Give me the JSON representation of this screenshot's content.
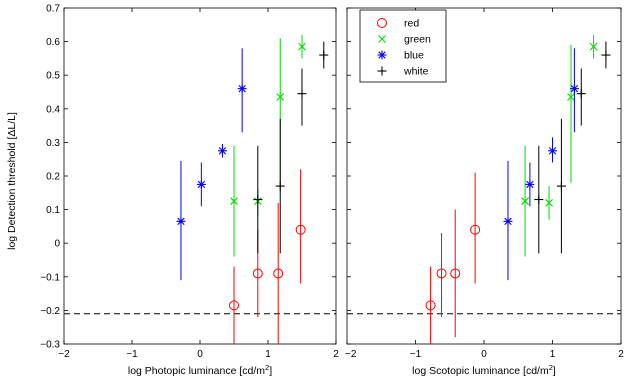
{
  "chart_data": [
    {
      "type": "scatter",
      "panel": "left",
      "xlabel": "log Photopic luminance [cd/m",
      "xlabel_sup": "2",
      "xlabel_suffix": "]",
      "ylabel": "log Detection threshold [ΔL/L]",
      "xlim": [
        -2,
        2
      ],
      "ylim": [
        -0.3,
        0.7
      ],
      "xticks": [
        "−2",
        "−1",
        "0",
        "1",
        "2"
      ],
      "yticks": [
        "−0.3",
        "−0.2",
        "−0.1",
        "0",
        "0.1",
        "0.2",
        "0.3",
        "0.4",
        "0.5",
        "0.6",
        "0.7"
      ],
      "reference_line_y": -0.21,
      "series": [
        {
          "name": "red",
          "marker": "circle",
          "color": "#ff0000",
          "points": [
            {
              "x": 0.5,
              "y": -0.185,
              "lo": -0.3,
              "hi": -0.07
            },
            {
              "x": 0.85,
              "y": -0.09,
              "lo": -0.22,
              "hi": 0.04
            },
            {
              "x": 1.15,
              "y": -0.09,
              "lo": -0.3,
              "hi": 0.12
            },
            {
              "x": 1.48,
              "y": 0.04,
              "lo": -0.12,
              "hi": 0.22
            }
          ]
        },
        {
          "name": "green",
          "marker": "x",
          "color": "#00dd00",
          "points": [
            {
              "x": 0.5,
              "y": 0.125,
              "lo": -0.04,
              "hi": 0.29
            },
            {
              "x": 0.85,
              "y": 0.125,
              "lo": 0.08,
              "hi": 0.16
            },
            {
              "x": 1.18,
              "y": 0.435,
              "lo": 0.18,
              "hi": 0.61
            },
            {
              "x": 1.5,
              "y": 0.585,
              "lo": 0.55,
              "hi": 0.62
            }
          ]
        },
        {
          "name": "blue",
          "marker": "star",
          "color": "#0000ff",
          "points": [
            {
              "x": -0.28,
              "y": 0.065,
              "lo": -0.11,
              "hi": 0.245
            },
            {
              "x": 0.02,
              "y": 0.175,
              "lo": 0.11,
              "hi": 0.24
            },
            {
              "x": 0.33,
              "y": 0.275,
              "lo": 0.255,
              "hi": 0.295
            },
            {
              "x": 0.62,
              "y": 0.46,
              "lo": 0.33,
              "hi": 0.58
            }
          ]
        },
        {
          "name": "white",
          "marker": "plus",
          "color": "#000000",
          "points": [
            {
              "x": 0.85,
              "y": 0.13,
              "lo": -0.03,
              "hi": 0.29
            },
            {
              "x": 1.18,
              "y": 0.17,
              "lo": -0.03,
              "hi": 0.37
            },
            {
              "x": 1.5,
              "y": 0.445,
              "lo": 0.35,
              "hi": 0.52
            },
            {
              "x": 1.82,
              "y": 0.56,
              "lo": 0.52,
              "hi": 0.6
            }
          ]
        }
      ]
    },
    {
      "type": "scatter",
      "panel": "right",
      "xlabel": "log Scotopic luminance [cd/m",
      "xlabel_sup": "2",
      "xlabel_suffix": "]",
      "ylabel": "",
      "xlim": [
        -2,
        2
      ],
      "ylim": [
        -0.3,
        0.7
      ],
      "xticks": [
        "−2",
        "−1",
        "0",
        "1",
        "2"
      ],
      "yticks": [],
      "reference_line_y": -0.21,
      "legend": {
        "position": "top-left",
        "entries": [
          "red",
          "green",
          "blue",
          "white"
        ]
      },
      "series": [
        {
          "name": "red",
          "marker": "circle",
          "color": "#ff0000",
          "points": [
            {
              "x": -0.78,
              "y": -0.185,
              "lo": -0.3,
              "hi": -0.07
            },
            {
              "x": -0.62,
              "y": -0.09,
              "lo": -0.22,
              "hi": 0.03
            },
            {
              "x": -0.42,
              "y": -0.09,
              "lo": -0.28,
              "hi": 0.1
            },
            {
              "x": -0.13,
              "y": 0.04,
              "lo": -0.12,
              "hi": 0.21
            }
          ]
        },
        {
          "name": "green",
          "marker": "x",
          "color": "#00dd00",
          "points": [
            {
              "x": 0.6,
              "y": 0.125,
              "lo": -0.04,
              "hi": 0.29
            },
            {
              "x": 0.95,
              "y": 0.12,
              "lo": 0.07,
              "hi": 0.17
            },
            {
              "x": 1.27,
              "y": 0.435,
              "lo": 0.18,
              "hi": 0.59
            },
            {
              "x": 1.6,
              "y": 0.585,
              "lo": 0.55,
              "hi": 0.62
            }
          ]
        },
        {
          "name": "blue",
          "marker": "star",
          "color": "#0000ff",
          "points": [
            {
              "x": 0.35,
              "y": 0.065,
              "lo": -0.11,
              "hi": 0.245
            },
            {
              "x": 0.67,
              "y": 0.175,
              "lo": 0.11,
              "hi": 0.24
            },
            {
              "x": 1.0,
              "y": 0.275,
              "lo": 0.24,
              "hi": 0.315
            },
            {
              "x": 1.32,
              "y": 0.46,
              "lo": 0.33,
              "hi": 0.58
            }
          ]
        },
        {
          "name": "white",
          "marker": "plus",
          "color": "#000000",
          "points": [
            {
              "x": 0.8,
              "y": 0.13,
              "lo": -0.03,
              "hi": 0.29
            },
            {
              "x": 1.13,
              "y": 0.17,
              "lo": -0.03,
              "hi": 0.37
            },
            {
              "x": 1.42,
              "y": 0.445,
              "lo": 0.35,
              "hi": 0.52
            },
            {
              "x": 1.78,
              "y": 0.56,
              "lo": 0.52,
              "hi": 0.6
            }
          ]
        }
      ]
    }
  ]
}
